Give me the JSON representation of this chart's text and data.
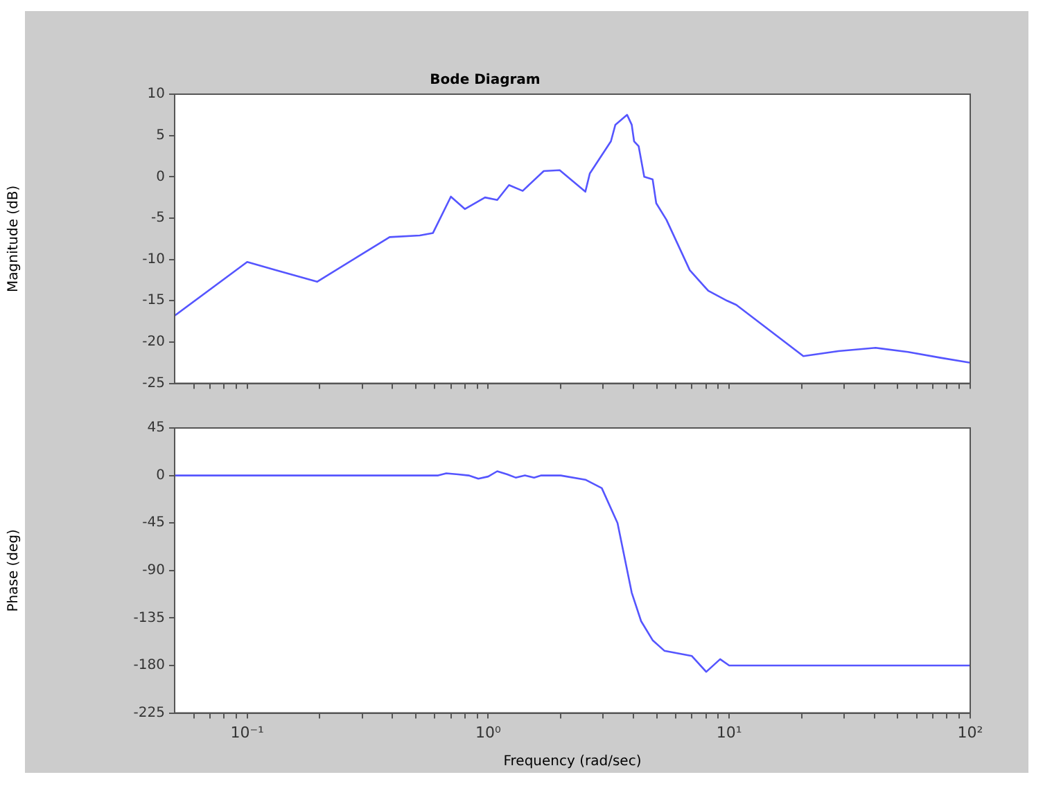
{
  "chart_data": [
    {
      "type": "line",
      "title": "Bode Diagram",
      "ylabel": "Magnitude (dB)",
      "log": "x",
      "marker": "none",
      "tick_labels": "y",
      "xlim": [
        0.05,
        100
      ],
      "xticks": [
        {
          "value": 0.06,
          "label": null
        },
        {
          "value": 0.07,
          "label": null
        },
        {
          "value": 0.08,
          "label": null
        },
        {
          "value": 0.09,
          "label": null
        },
        {
          "value": 0.1,
          "label": null
        },
        {
          "value": 0.2,
          "label": null
        },
        {
          "value": 0.3,
          "label": null
        },
        {
          "value": 0.4,
          "label": null
        },
        {
          "value": 0.5,
          "label": null
        },
        {
          "value": 0.6,
          "label": null
        },
        {
          "value": 0.7,
          "label": null
        },
        {
          "value": 0.8,
          "label": null
        },
        {
          "value": 0.9,
          "label": null
        },
        {
          "value": 1,
          "label": null
        },
        {
          "value": 2,
          "label": null
        },
        {
          "value": 3,
          "label": null
        },
        {
          "value": 4,
          "label": null
        },
        {
          "value": 5,
          "label": null
        },
        {
          "value": 6,
          "label": null
        },
        {
          "value": 7,
          "label": null
        },
        {
          "value": 8,
          "label": null
        },
        {
          "value": 9,
          "label": null
        },
        {
          "value": 10,
          "label": null
        },
        {
          "value": 20,
          "label": null
        },
        {
          "value": 30,
          "label": null
        },
        {
          "value": 40,
          "label": null
        },
        {
          "value": 50,
          "label": null
        },
        {
          "value": 60,
          "label": null
        },
        {
          "value": 70,
          "label": null
        },
        {
          "value": 80,
          "label": null
        },
        {
          "value": 90,
          "label": null
        },
        {
          "value": 100,
          "label": null
        }
      ],
      "ylim": [
        -25,
        10
      ],
      "yticks": [
        -25,
        -20,
        -15,
        -10,
        -5,
        0,
        5,
        10
      ],
      "series": [
        {
          "color": "#5555ff",
          "x": [
            0.05,
            0.1,
            0.132,
            0.195,
            0.29,
            0.39,
            0.52,
            0.59,
            0.7,
            0.8,
            0.97,
            1.09,
            1.22,
            1.39,
            1.7,
            1.98,
            2.53,
            2.64,
            3.23,
            3.37,
            3.77,
            3.94,
            4.03,
            4.21,
            4.44,
            4.81,
            4.98,
            5.49,
            6.86,
            8.19,
            9.8,
            10.7,
            20.3,
            28.4,
            40.5,
            55.2,
            75.3,
            100
          ],
          "values": [
            -16.8,
            -10.3,
            -11.3,
            -12.7,
            -9.6,
            -7.3,
            -7.1,
            -6.8,
            -2.4,
            -3.9,
            -2.5,
            -2.8,
            -1.0,
            -1.7,
            0.7,
            0.8,
            -1.8,
            0.4,
            4.3,
            6.3,
            7.5,
            6.3,
            4.3,
            3.7,
            0,
            -0.3,
            -3.2,
            -5.2,
            -11.3,
            -13.8,
            -15.0,
            -15.5,
            -21.7,
            -21.1,
            -20.7,
            -21.2,
            -21.9,
            -22.5
          ]
        }
      ]
    },
    {
      "type": "line",
      "xlabel": "Frequency (rad/sec)",
      "ylabel": "Phase (deg)",
      "log": "x",
      "marker": "none",
      "xlim": [
        0.05,
        100
      ],
      "xticks": [
        {
          "value": 0.06,
          "label": null
        },
        {
          "value": 0.07,
          "label": null
        },
        {
          "value": 0.08,
          "label": null
        },
        {
          "value": 0.09,
          "label": null
        },
        {
          "value": 0.1,
          "label": "10⁻¹"
        },
        {
          "value": 0.2,
          "label": null
        },
        {
          "value": 0.3,
          "label": null
        },
        {
          "value": 0.4,
          "label": null
        },
        {
          "value": 0.5,
          "label": null
        },
        {
          "value": 0.6,
          "label": null
        },
        {
          "value": 0.7,
          "label": null
        },
        {
          "value": 0.8,
          "label": null
        },
        {
          "value": 0.9,
          "label": null
        },
        {
          "value": 1,
          "label": "10⁰"
        },
        {
          "value": 2,
          "label": null
        },
        {
          "value": 3,
          "label": null
        },
        {
          "value": 4,
          "label": null
        },
        {
          "value": 5,
          "label": null
        },
        {
          "value": 6,
          "label": null
        },
        {
          "value": 7,
          "label": null
        },
        {
          "value": 8,
          "label": null
        },
        {
          "value": 9,
          "label": null
        },
        {
          "value": 10,
          "label": "10¹"
        },
        {
          "value": 20,
          "label": null
        },
        {
          "value": 30,
          "label": null
        },
        {
          "value": 40,
          "label": null
        },
        {
          "value": 50,
          "label": null
        },
        {
          "value": 60,
          "label": null
        },
        {
          "value": 70,
          "label": null
        },
        {
          "value": 80,
          "label": null
        },
        {
          "value": 90,
          "label": null
        },
        {
          "value": 100,
          "label": "10²"
        }
      ],
      "ylim": [
        -225,
        45
      ],
      "yticks": [
        -225,
        -180,
        -135,
        -90,
        -45,
        0,
        45
      ],
      "series": [
        {
          "color": "#5555ff",
          "x": [
            0.05,
            0.62,
            0.67,
            0.75,
            0.83,
            0.91,
            1.0,
            1.09,
            1.2,
            1.3,
            1.42,
            1.55,
            1.66,
            2.0,
            2.53,
            2.96,
            3.44,
            3.94,
            4.31,
            4.81,
            5.38,
            7.0,
            8.03,
            9.17,
            10,
            100
          ],
          "values": [
            0,
            0,
            2,
            1,
            0,
            -3,
            -1,
            4,
            1,
            -2,
            0,
            -2,
            0,
            0,
            -4,
            -12,
            -45,
            -111,
            -138,
            -156,
            -166,
            -171,
            -186,
            -174,
            -180,
            -180
          ]
        }
      ]
    }
  ]
}
